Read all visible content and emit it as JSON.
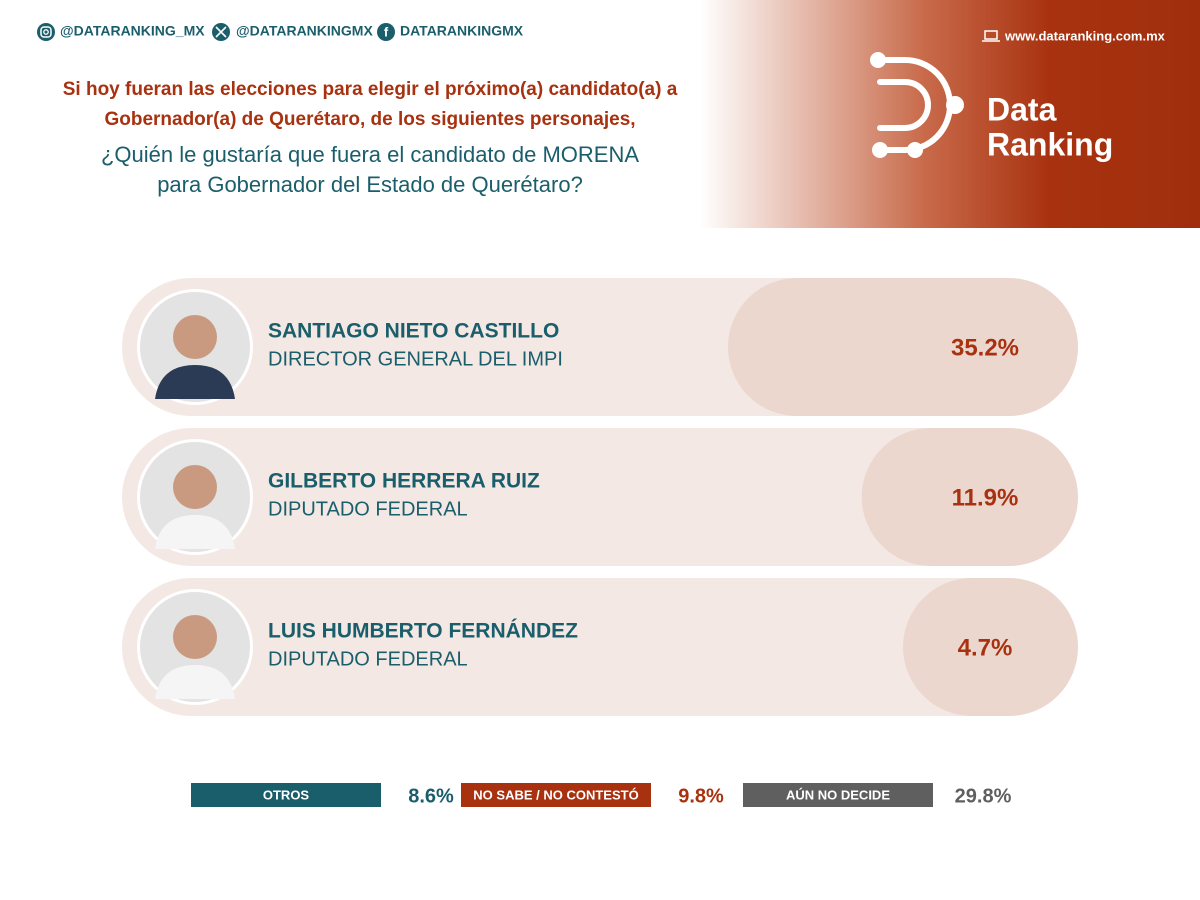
{
  "chart_data": {
    "type": "bar",
    "handles": [
      "@DATARANKING_MX",
      "@DATARANKINGMX",
      "DATARANKINGMX"
    ],
    "website": "www.dataranking.com.mx",
    "brand": [
      "Data",
      "Ranking"
    ],
    "title": [
      "Si hoy fueran las elecciones para elegir el próximo(a) candidato(a) a",
      "Gobernador(a) de Querétaro, de los siguientes personajes,"
    ],
    "subtitle": [
      "¿Quién le gustaría que fuera el candidato de MORENA",
      "para Gobernador del Estado de Querétaro?"
    ],
    "categories": [
      "SANTIAGO NIETO CASTILLO",
      "GILBERTO HERRERA RUIZ",
      "LUIS HUMBERTO FERNÁNDEZ"
    ],
    "roles": [
      "DIRECTOR GENERAL DEL IMPI",
      "DIPUTADO FEDERAL",
      "DIPUTADO FEDERAL"
    ],
    "values": [
      35.2,
      11.9,
      4.7
    ],
    "value_labels": [
      "35.2%",
      "11.9%",
      "4.7%"
    ],
    "color": "#ecd7cf",
    "others": [
      {
        "label": "OTROS",
        "value": 8.6,
        "value_label": "8.6%",
        "color": "#1b5e6b"
      },
      {
        "label": "NO SABE / NO CONTESTÓ",
        "value": 9.8,
        "value_label": "9.8%",
        "color": "#a83210"
      },
      {
        "label": "AÚN NO DECIDE",
        "value": 29.8,
        "value_label": "29.8%",
        "color": "#5f5f5f"
      }
    ]
  }
}
